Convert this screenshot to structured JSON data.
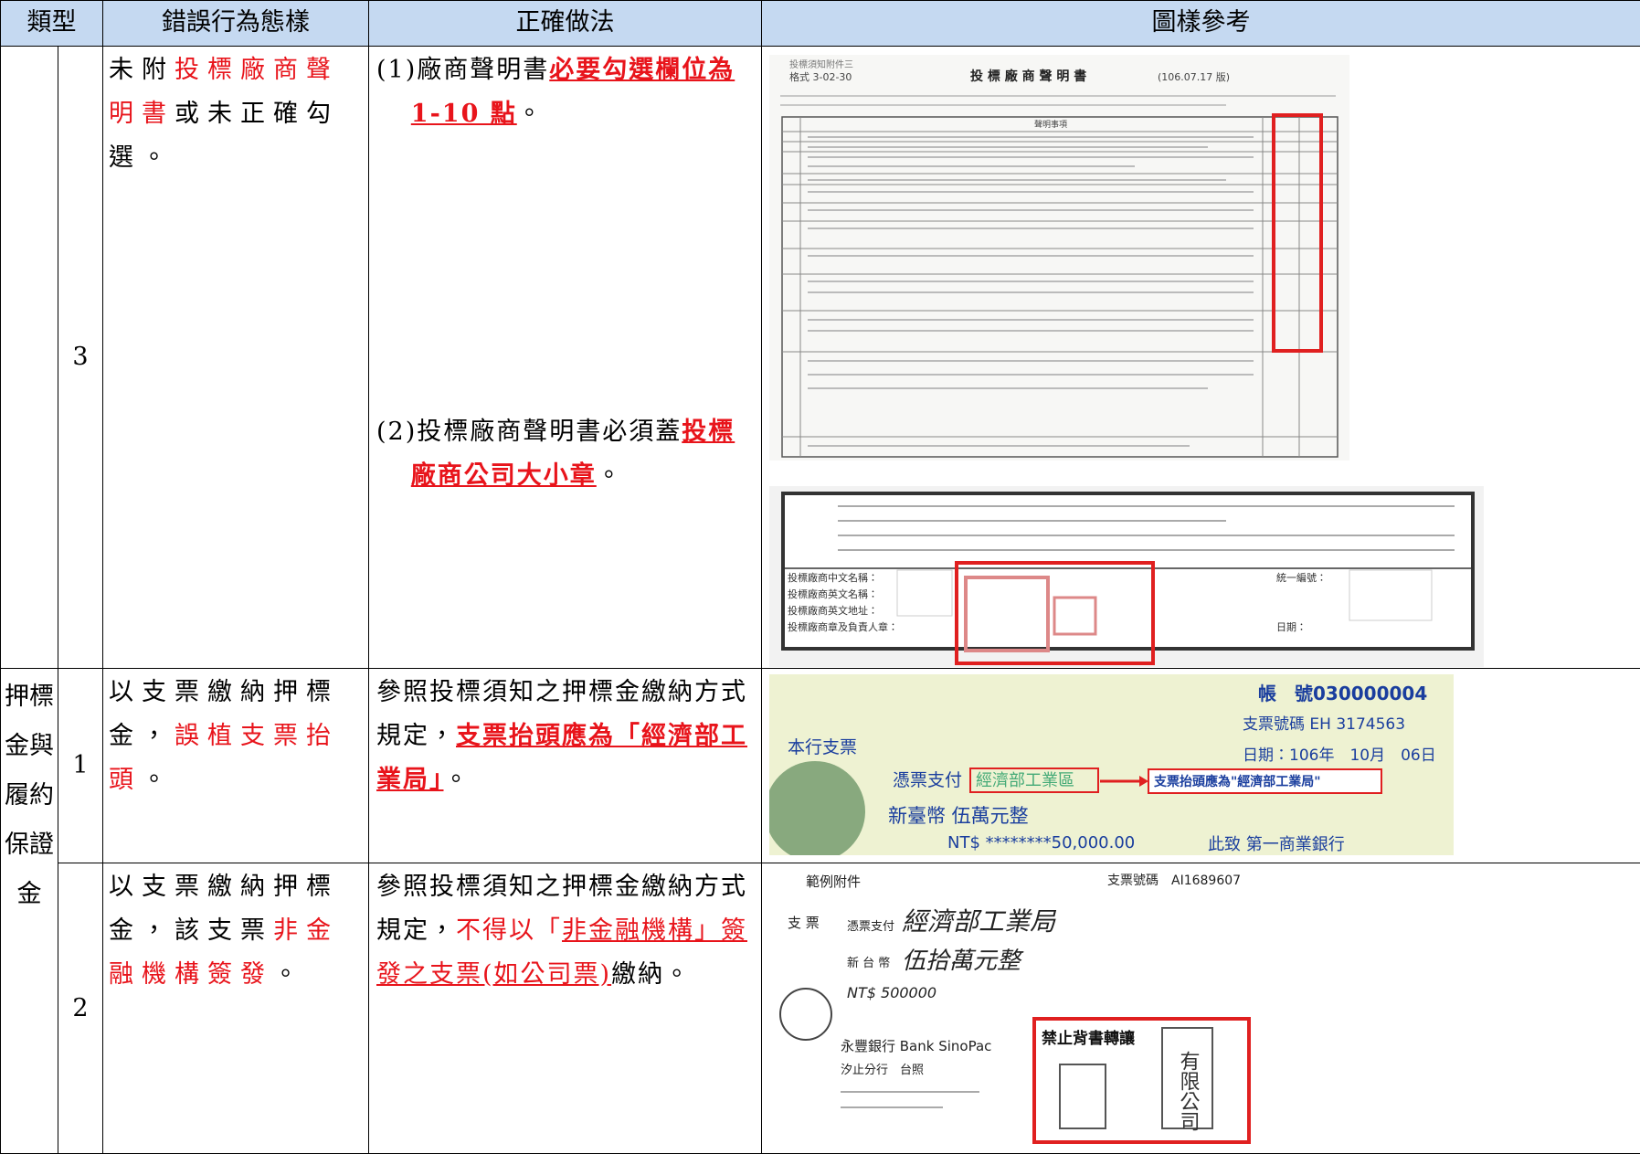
{
  "table": {
    "header": [
      "類型",
      "錯誤行為態樣",
      "正確做法",
      "圖樣參考"
    ],
    "group_label": "押標金與履約保證金",
    "rows": [
      {
        "number": "3",
        "error": [
          {
            "t": "未附"
          },
          {
            "t": "投標廠商聲明書",
            "style": "red"
          },
          {
            "t": "或未正確勾選。"
          }
        ],
        "fix": [
          [
            {
              "t": "(1)廠商聲明書"
            },
            {
              "t": "必要勾選欄位為 1-10 點",
              "style": "emph"
            },
            {
              "t": "。"
            }
          ],
          [
            {
              "t": "(2)投標廠商聲明書必須蓋"
            },
            {
              "t": "投標廠商公司大小章",
              "style": "emph"
            },
            {
              "t": "。"
            }
          ]
        ]
      },
      {
        "number": "1",
        "error": [
          {
            "t": "以支票繳納押標金，"
          },
          {
            "t": "誤植支票抬頭",
            "style": "red"
          },
          {
            "t": "。"
          }
        ],
        "fix": [
          [
            {
              "t": "參照投標須知之押標金繳納方式規定，"
            },
            {
              "t": "支票抬頭應為「經濟部工業局」",
              "style": "emph"
            },
            {
              "t": "。"
            }
          ]
        ]
      },
      {
        "number": "2",
        "error": [
          {
            "t": "以支票繳納押標金，該支票"
          },
          {
            "t": "非金融機構簽發",
            "style": "red"
          },
          {
            "t": "。"
          }
        ],
        "fix": [
          [
            {
              "t": "參照投標須知之押標金繳納方式規定，"
            },
            {
              "t": "不得以「",
              "style": "red"
            },
            {
              "t": "非金融機構」簽發之支票(如公司票)",
              "style": "red-u"
            },
            {
              "t": "繳納。"
            }
          ]
        ]
      }
    ]
  },
  "figures": {
    "form": {
      "head": "投標須知附件三",
      "format": "格式 3-02-30",
      "title": "投 標 廠 商 聲 明 書",
      "version": "(106.07.17 版)",
      "col_item": "聲明事項"
    },
    "seal": {
      "name_cn": "投標廠商中文名稱：",
      "name_en": "投標廠商英文名稱：",
      "addr": "投標廠商英文地址：",
      "stamp": "投標廠商章及負責人章：",
      "tax": "統一編號：",
      "date": "日期："
    },
    "cheque1": {
      "account": "帳　號030000004",
      "cheque_no": "支票號碼 EH 3174563",
      "date": "日期：106年　10月　06日",
      "kind": "本行支票",
      "pay_to": "憑票支付",
      "payee": "經濟部工業區",
      "note": "支票抬頭應為\"經濟部工業局\"",
      "amount": "新臺幣  伍萬元整",
      "amount_num": "NT$  ********50,000.00",
      "bank": "此致 第一商業銀行"
    },
    "cheque2": {
      "label": "範例附件",
      "cheque_no": "支票號碼　AI1689607",
      "kind": "支 票",
      "pay_to": "憑票支付",
      "payee": "經濟部工業局",
      "currency": "新 台 幣",
      "amount": "伍拾萬元整",
      "amount_num": "NT$ 500000",
      "bank": "永豐銀行 Bank SinoPac",
      "branch": "汐止分行　台照",
      "no_endorse": "禁止背書轉讓",
      "company": "有限公司"
    }
  }
}
